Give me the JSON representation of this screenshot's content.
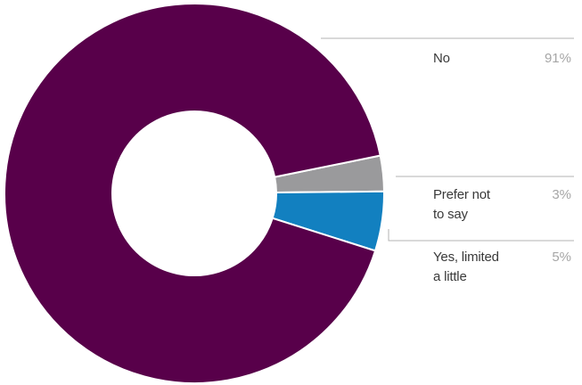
{
  "chart_data": {
    "type": "pie",
    "style": "donut",
    "slices": [
      {
        "label": "No",
        "value": 91,
        "display": "91%",
        "color": "#58004a"
      },
      {
        "label": "Prefer not\nto say",
        "value": 3,
        "display": "3%",
        "color": "#9a9a9c"
      },
      {
        "label": "Yes, limited\na little",
        "value": 5,
        "display": "5%",
        "color": "#1280c0"
      }
    ],
    "legend_placement": "right",
    "leader_line_color": "#b3b3b3"
  }
}
